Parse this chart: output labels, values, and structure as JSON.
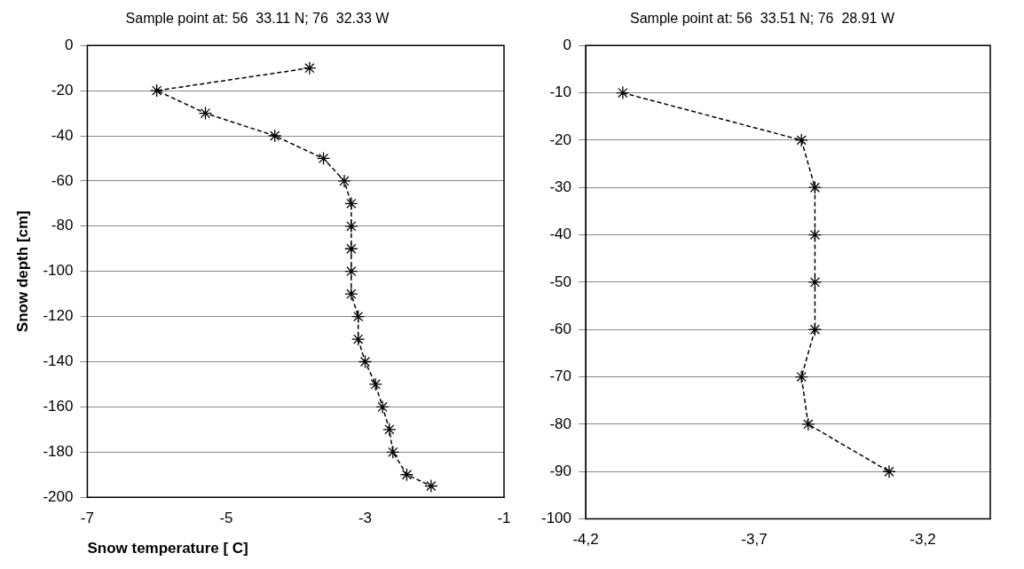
{
  "chart_data": [
    {
      "type": "line",
      "title": "Sample point at: 56  33.11 N; 76  32.33 W",
      "xlabel": "Snow temperature [ C]",
      "ylabel": "Snow depth [cm]",
      "xlim": [
        -7,
        -1
      ],
      "xticks": [
        -7,
        -5,
        -3,
        -1
      ],
      "ylim": [
        -200,
        0
      ],
      "yticks": [
        -200,
        -180,
        -160,
        -140,
        -120,
        -100,
        -80,
        -60,
        -40,
        -20,
        0
      ],
      "grid": "y",
      "marker": "cross",
      "line_style": "dashed",
      "series": [
        {
          "color": "#000000",
          "x": [
            -3.8,
            -6.0,
            -5.3,
            -4.3,
            -3.6,
            -3.3,
            -3.2,
            -3.2,
            -3.2,
            -3.2,
            -3.2,
            -3.1,
            -3.1,
            -3.0,
            -2.85,
            -2.75,
            -2.65,
            -2.6,
            -2.4,
            -2.05
          ],
          "values": [
            -10,
            -20,
            -30,
            -40,
            -50,
            -60,
            -70,
            -80,
            -90,
            -100,
            -110,
            -120,
            -130,
            -140,
            -150,
            -160,
            -170,
            -180,
            -190,
            -195
          ]
        }
      ]
    },
    {
      "type": "line",
      "title": "Sample point at: 56  33.51 N; 76  28.91 W",
      "xlim": [
        -4.2,
        -3.0
      ],
      "xticks": [
        {
          "value": -4.2,
          "label": "-4,2"
        },
        {
          "value": -3.7,
          "label": "-3,7"
        },
        {
          "value": -3.2,
          "label": "-3,2"
        }
      ],
      "ylim": [
        -100,
        0
      ],
      "yticks": [
        -100,
        -90,
        -80,
        -70,
        -60,
        -50,
        -40,
        -30,
        -20,
        -10,
        0
      ],
      "grid": "y",
      "marker": "cross",
      "line_style": "dashed",
      "series": [
        {
          "color": "#000000",
          "x": [
            -4.09,
            -3.56,
            -3.52,
            -3.52,
            -3.52,
            -3.52,
            -3.56,
            -3.54,
            -3.3
          ],
          "values": [
            -10,
            -20,
            -30,
            -40,
            -50,
            -60,
            -70,
            -80,
            -90
          ]
        }
      ]
    }
  ]
}
